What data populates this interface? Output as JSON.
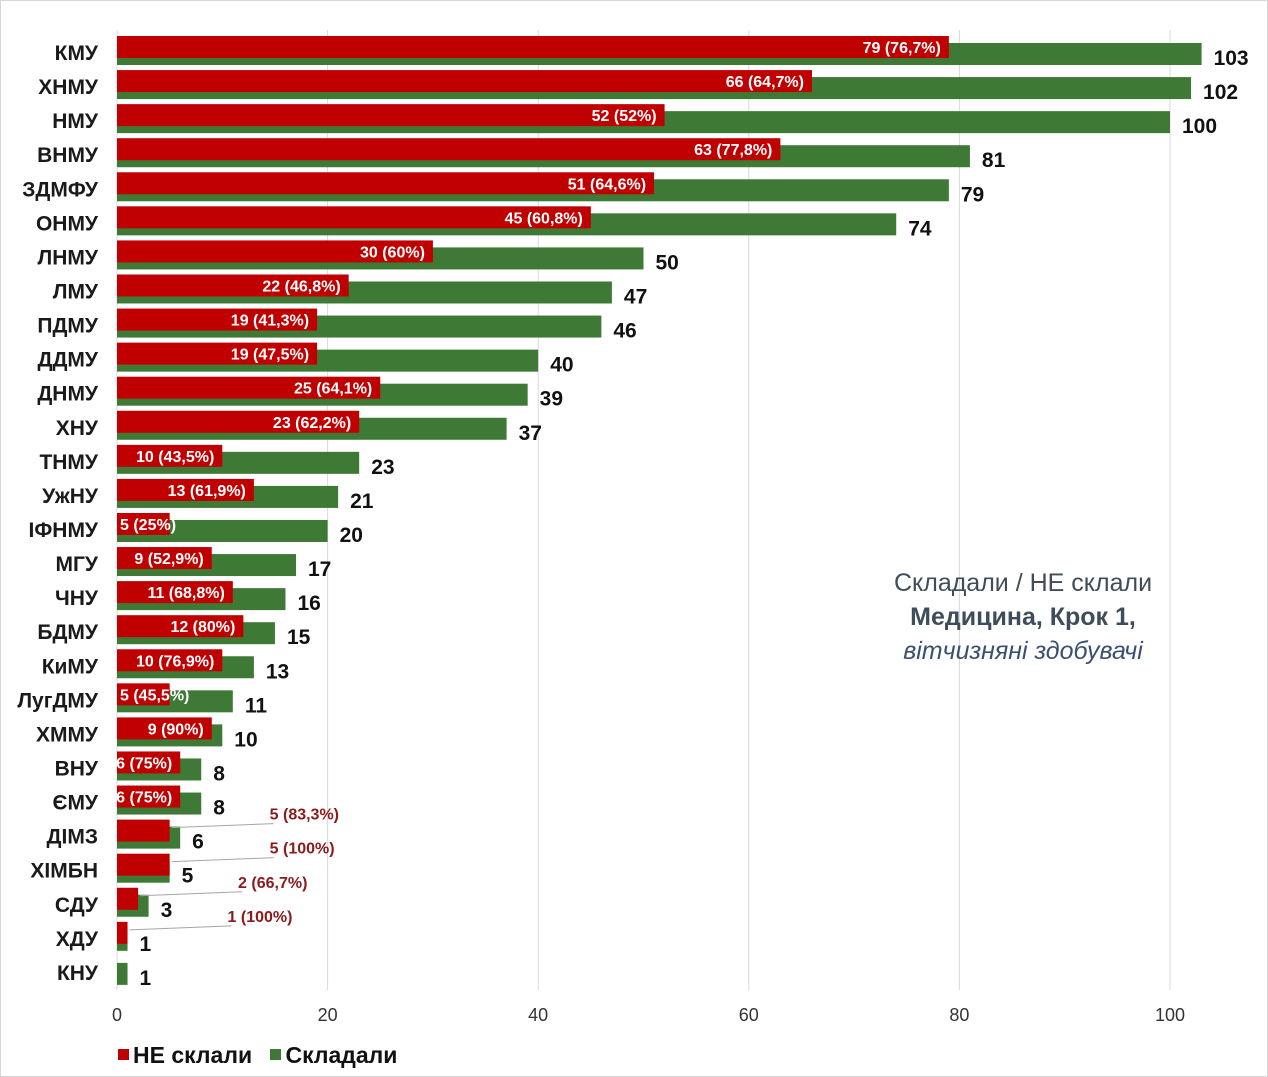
{
  "chart_data": {
    "type": "bar",
    "orientation": "horizontal",
    "categories": [
      "КМУ",
      "ХНМУ",
      "НМУ",
      "ВНМУ",
      "ЗДМФУ",
      "ОНМУ",
      "ЛНМУ",
      "ЛМУ",
      "ПДМУ",
      "ДДМУ",
      "ДНМУ",
      "ХНУ",
      "ТНМУ",
      "УжНУ",
      "ІФНМУ",
      "МГУ",
      "ЧНУ",
      "БДМУ",
      "КиМУ",
      "ЛугДМУ",
      "ХММУ",
      "ВНУ",
      "ЄМУ",
      "ДІМЗ",
      "ХІМБН",
      "СДУ",
      "ХДУ",
      "КНУ"
    ],
    "series": [
      {
        "name": "НЕ склали",
        "color": "#c00000",
        "values": [
          79,
          66,
          52,
          63,
          51,
          45,
          30,
          22,
          19,
          19,
          25,
          23,
          10,
          13,
          5,
          9,
          11,
          12,
          10,
          5,
          9,
          6,
          6,
          5,
          5,
          2,
          1,
          0
        ],
        "labels": [
          "79 (76,7%)",
          "66 (64,7%)",
          "52 (52%)",
          "63 (77,8%)",
          "51 (64,6%)",
          "45 (60,8%)",
          "30 (60%)",
          "22 (46,8%)",
          "19 (41,3%)",
          "19 (47,5%)",
          "25 (64,1%)",
          "23 (62,2%)",
          "10 (43,5%)",
          "13 (61,9%)",
          "5 (25%)",
          "9 (52,9%)",
          "11 (68,8%)",
          "12 (80%)",
          "10 (76,9%)",
          "5 (45,5%)",
          "9 (90%)",
          "6 (75%)",
          "6 (75%)",
          "5 (83,3%)",
          "5 (100%)",
          "2 (66,7%)",
          "1 (100%)",
          ""
        ]
      },
      {
        "name": "Складали",
        "color": "#3e7a35",
        "values": [
          103,
          102,
          100,
          81,
          79,
          74,
          50,
          47,
          46,
          40,
          39,
          37,
          23,
          21,
          20,
          17,
          16,
          15,
          13,
          11,
          10,
          8,
          8,
          6,
          5,
          3,
          1,
          1
        ],
        "labels": [
          "103",
          "102",
          "100",
          "81",
          "79",
          "74",
          "50",
          "47",
          "46",
          "40",
          "39",
          "37",
          "23",
          "21",
          "20",
          "17",
          "16",
          "15",
          "13",
          "11",
          "10",
          "8",
          "8",
          "6",
          "5",
          "3",
          "1",
          "1"
        ]
      }
    ],
    "xlim": [
      0,
      110
    ],
    "xticks": [
      "0",
      "20",
      "40",
      "60",
      "80",
      "100"
    ],
    "grid": true,
    "legend": "bottom-left",
    "annotation": {
      "line1": "Складали  / НЕ склали",
      "line2": "Медицина, Крок 1,",
      "line3": "вітчизняні здобувачі"
    }
  }
}
